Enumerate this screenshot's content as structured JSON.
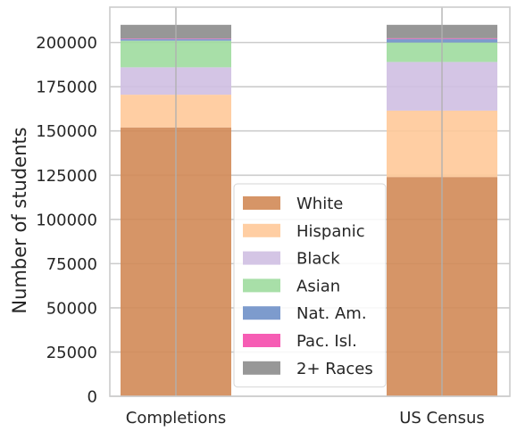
{
  "chart_data": {
    "type": "bar",
    "stacked": true,
    "title": "",
    "xlabel": "",
    "ylabel": "Number of students",
    "ylim": [
      0,
      220000
    ],
    "yticks": [
      0,
      25000,
      50000,
      75000,
      100000,
      125000,
      150000,
      175000,
      200000
    ],
    "grid": true,
    "legend_placement": "bottom-center",
    "categories": [
      "Completions",
      "US Census"
    ],
    "series": [
      {
        "name": "White",
        "color": "#d18a56",
        "values": [
          152000,
          124000
        ]
      },
      {
        "name": "Hispanic",
        "color": "#ffc999",
        "values": [
          18500,
          37500
        ]
      },
      {
        "name": "Black",
        "color": "#cfbfe2",
        "values": [
          15500,
          27500
        ]
      },
      {
        "name": "Asian",
        "color": "#9fdb9f",
        "values": [
          15000,
          11000
        ]
      },
      {
        "name": "Nat. Am.",
        "color": "#6f90c8",
        "values": [
          1000,
          2000
        ]
      },
      {
        "name": "Pac. Isl.",
        "color": "#f54bac",
        "values": [
          300,
          400
        ]
      },
      {
        "name": "2+ Races",
        "color": "#8c8c8c",
        "values": [
          7700,
          7600
        ]
      }
    ]
  }
}
